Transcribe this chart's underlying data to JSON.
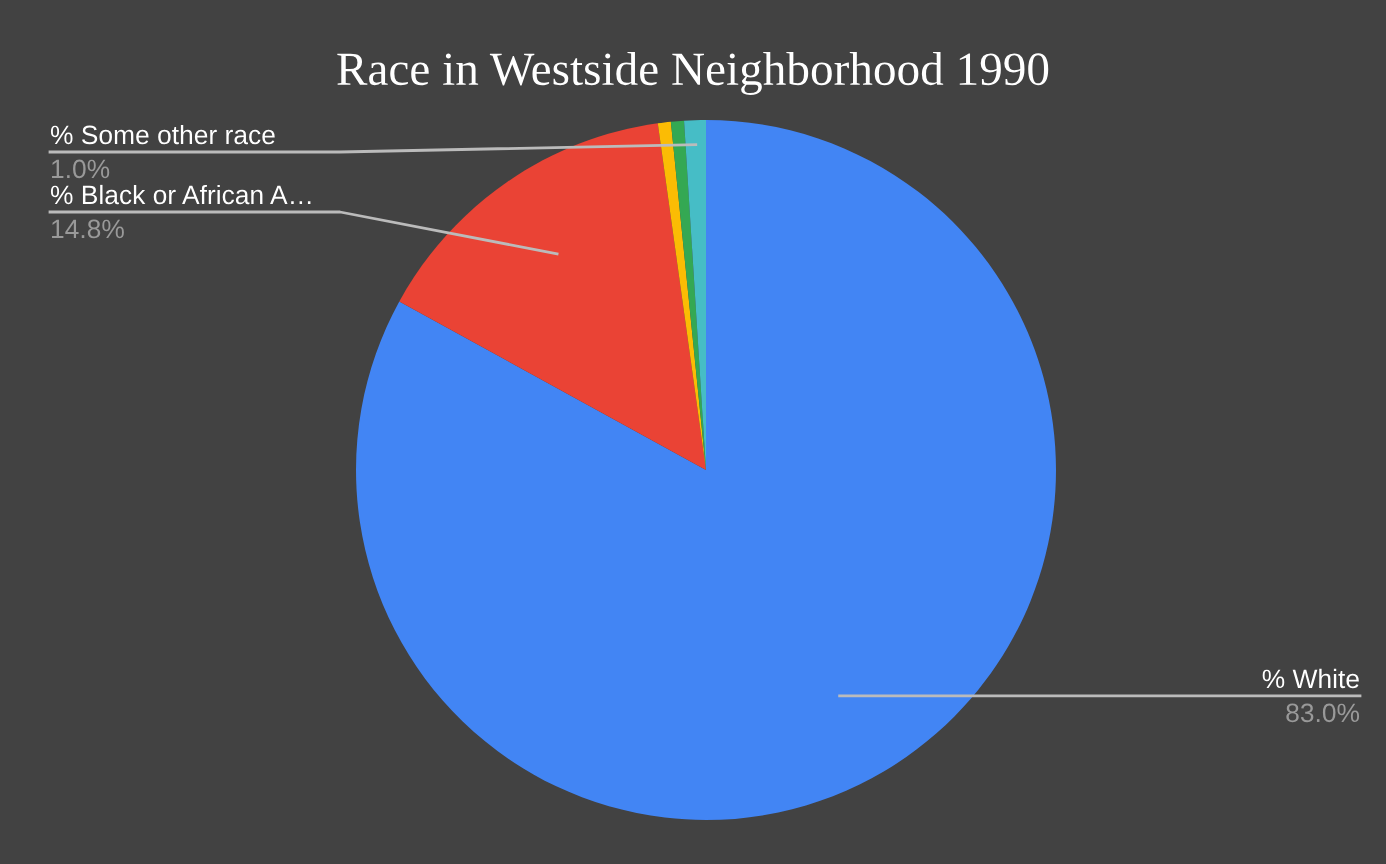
{
  "chart_data": {
    "type": "pie",
    "title": "Race in Westside Neighborhood 1990",
    "categories": [
      "% White",
      "% Black or African A…",
      null,
      null,
      "% Some other race"
    ],
    "values": [
      83.0,
      14.8,
      0.6,
      0.6,
      1.0
    ],
    "value_labels": [
      "83.0%",
      "14.8%",
      null,
      null,
      "1.0%"
    ],
    "colors": [
      "#4285f4",
      "#ea4335",
      "#fbbc04",
      "#34a853",
      "#46bdc6"
    ]
  }
}
